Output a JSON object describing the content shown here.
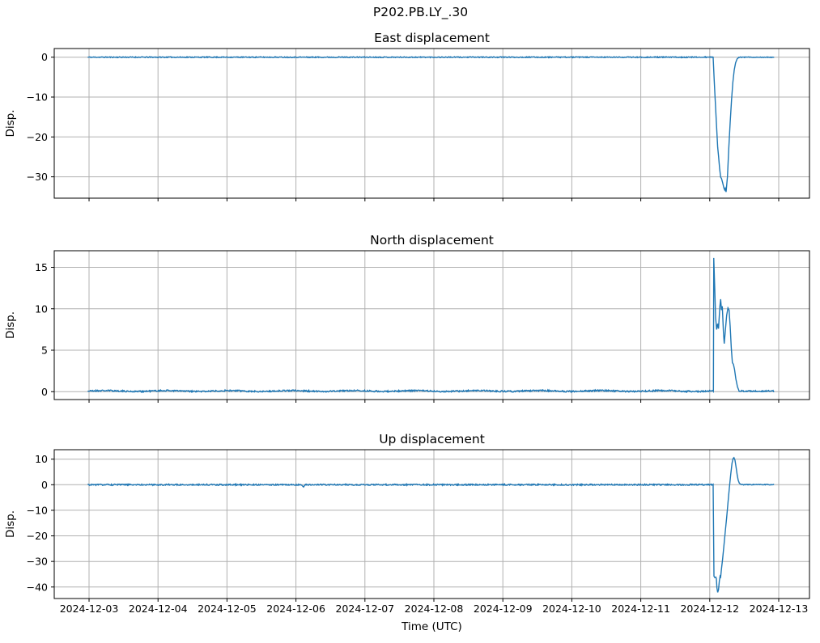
{
  "figure": {
    "title": "P202.PB.LY_.30",
    "xlabel": "Time (UTC)",
    "background": "#ffffff",
    "line_color": "#1f77b4",
    "grid_color": "#b0b0b0",
    "axis_color": "#000000",
    "text_color": "#000000"
  },
  "axes_x": {
    "lim_days": [
      -0.505,
      10.446
    ],
    "ticks": [
      {
        "t": 0,
        "label": "2024-12-03"
      },
      {
        "t": 1,
        "label": "2024-12-04"
      },
      {
        "t": 2,
        "label": "2024-12-05"
      },
      {
        "t": 3,
        "label": "2024-12-06"
      },
      {
        "t": 4,
        "label": "2024-12-07"
      },
      {
        "t": 5,
        "label": "2024-12-08"
      },
      {
        "t": 6,
        "label": "2024-12-09"
      },
      {
        "t": 7,
        "label": "2024-12-10"
      },
      {
        "t": 8,
        "label": "2024-12-11"
      },
      {
        "t": 9,
        "label": "2024-12-12"
      },
      {
        "t": 10,
        "label": "2024-12-13"
      }
    ]
  },
  "chart_data": [
    {
      "type": "line",
      "title": "East displacement",
      "ylabel": "Disp.",
      "ylim": [
        -35.35,
        2.17
      ],
      "yticks": [
        {
          "v": 0,
          "label": "0"
        },
        {
          "v": -10,
          "label": "−10"
        },
        {
          "v": -20,
          "label": "−20"
        },
        {
          "v": -30,
          "label": "−30"
        }
      ],
      "show_xticklabels": false,
      "grid": true,
      "segments": [
        {
          "kind": "noise",
          "t0": -0.02,
          "t1": 9.049,
          "value": 0.0,
          "amp": 0.12,
          "seed": 11
        },
        {
          "kind": "path",
          "points": [
            [
              9.049,
              0.0
            ],
            [
              9.064,
              -5.6
            ],
            [
              9.076,
              -9.7
            ],
            [
              9.096,
              -16.4
            ],
            [
              9.115,
              -22.6
            ],
            [
              9.127,
              -24.7
            ],
            [
              9.143,
              -27.9
            ],
            [
              9.158,
              -30.1
            ],
            [
              9.17,
              -30.4
            ],
            [
              9.186,
              -31.4
            ],
            [
              9.205,
              -32.8
            ],
            [
              9.217,
              -33.3
            ],
            [
              9.225,
              -32.9
            ],
            [
              9.237,
              -33.8
            ],
            [
              9.257,
              -29.9
            ],
            [
              9.276,
              -22.8
            ],
            [
              9.296,
              -16.4
            ],
            [
              9.316,
              -10.7
            ],
            [
              9.335,
              -6.3
            ],
            [
              9.355,
              -3.2
            ],
            [
              9.375,
              -1.4
            ],
            [
              9.398,
              -0.4
            ],
            [
              9.422,
              -0.06
            ]
          ]
        },
        {
          "kind": "noise",
          "t0": 9.422,
          "t1": 9.935,
          "value": 0.0,
          "amp": 0.09,
          "seed": 12
        }
      ]
    },
    {
      "type": "line",
      "title": "North displacement",
      "ylabel": "Disp.",
      "ylim": [
        -0.95,
        17.0
      ],
      "yticks": [
        {
          "v": 0,
          "label": "0"
        },
        {
          "v": 5,
          "label": "5"
        },
        {
          "v": 10,
          "label": "10"
        },
        {
          "v": 15,
          "label": "15"
        }
      ],
      "show_xticklabels": false,
      "grid": true,
      "segments": [
        {
          "kind": "noise",
          "t0": -0.02,
          "t1": 9.053,
          "value": 0.08,
          "amp": 0.09,
          "seed": 21,
          "wobble": [
            0.05,
            0.9
          ]
        },
        {
          "kind": "path",
          "points": [
            [
              9.053,
              0.16
            ],
            [
              9.058,
              16.13
            ],
            [
              9.073,
              12.3
            ],
            [
              9.085,
              8.9
            ],
            [
              9.1,
              7.5
            ],
            [
              9.115,
              8.2
            ],
            [
              9.127,
              7.6
            ],
            [
              9.147,
              10.3
            ],
            [
              9.158,
              11.15
            ],
            [
              9.17,
              9.85
            ],
            [
              9.182,
              10.3
            ],
            [
              9.198,
              7.25
            ],
            [
              9.21,
              5.8
            ],
            [
              9.225,
              7.25
            ],
            [
              9.245,
              9.2
            ],
            [
              9.264,
              10.1
            ],
            [
              9.28,
              9.85
            ],
            [
              9.296,
              7.9
            ],
            [
              9.312,
              5.3
            ],
            [
              9.328,
              3.5
            ],
            [
              9.343,
              3.3
            ],
            [
              9.359,
              2.7
            ],
            [
              9.378,
              1.56
            ],
            [
              9.402,
              0.58
            ],
            [
              9.422,
              0.16
            ]
          ]
        },
        {
          "kind": "noise",
          "t0": 9.422,
          "t1": 9.935,
          "value": 0.08,
          "amp": 0.09,
          "seed": 22
        }
      ]
    },
    {
      "type": "line",
      "title": "Up displacement",
      "ylabel": "Disp.",
      "ylim": [
        -44.5,
        13.7
      ],
      "yticks": [
        {
          "v": 10,
          "label": "10"
        },
        {
          "v": 0,
          "label": "0"
        },
        {
          "v": -10,
          "label": "−10"
        },
        {
          "v": -20,
          "label": "−20"
        },
        {
          "v": -30,
          "label": "−30"
        },
        {
          "v": -40,
          "label": "−40"
        }
      ],
      "show_xticklabels": true,
      "grid": true,
      "segments": [
        {
          "kind": "noise",
          "t0": -0.02,
          "t1": 3.08,
          "value": 0.0,
          "amp": 0.27,
          "seed": 31
        },
        {
          "kind": "path",
          "points": [
            [
              3.08,
              -0.1
            ],
            [
              3.11,
              -0.9
            ],
            [
              3.13,
              -0.1
            ]
          ]
        },
        {
          "kind": "noise",
          "t0": 3.13,
          "t1": 9.049,
          "value": 0.0,
          "amp": 0.27,
          "seed": 32
        },
        {
          "kind": "path",
          "points": [
            [
              9.049,
              0.1
            ],
            [
              9.061,
              -35.75
            ],
            [
              9.073,
              -36.3
            ],
            [
              9.088,
              -36.1
            ],
            [
              9.096,
              -36.8
            ],
            [
              9.104,
              -40.3
            ],
            [
              9.115,
              -42.1
            ],
            [
              9.127,
              -41.1
            ],
            [
              9.139,
              -37.65
            ],
            [
              9.15,
              -35.75
            ],
            [
              9.158,
              -36.1
            ],
            [
              9.17,
              -32.9
            ],
            [
              9.186,
              -29.2
            ],
            [
              9.205,
              -23.95
            ],
            [
              9.225,
              -18.35
            ],
            [
              9.245,
              -12.9
            ],
            [
              9.264,
              -7.1
            ],
            [
              9.284,
              -1.3
            ],
            [
              9.304,
              4.0
            ],
            [
              9.323,
              8.4
            ],
            [
              9.339,
              10.3
            ],
            [
              9.351,
              10.6
            ],
            [
              9.366,
              9.6
            ],
            [
              9.382,
              6.8
            ],
            [
              9.398,
              3.8
            ],
            [
              9.413,
              1.7
            ],
            [
              9.429,
              0.6
            ],
            [
              9.449,
              0.2
            ],
            [
              9.468,
              0.1
            ]
          ]
        },
        {
          "kind": "noise",
          "t0": 9.468,
          "t1": 9.935,
          "value": 0.05,
          "amp": 0.18,
          "seed": 33
        }
      ]
    }
  ]
}
